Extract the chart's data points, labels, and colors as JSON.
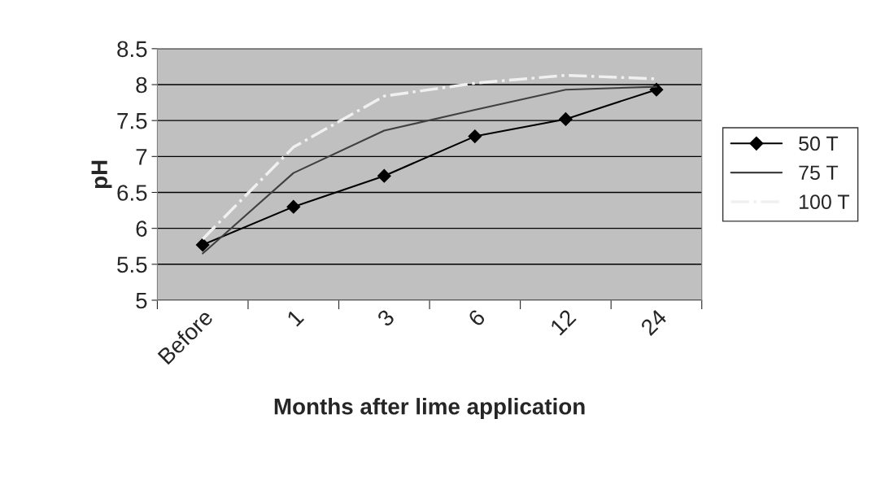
{
  "chart_data": {
    "type": "line",
    "xlabel": "Months after lime application",
    "ylabel": "pH",
    "categories": [
      "Before",
      "1",
      "3",
      "6",
      "12",
      "24"
    ],
    "series": [
      {
        "name": "50 T",
        "color": "#000000",
        "marker": "diamond",
        "line_style": "solid",
        "values": [
          5.77,
          6.3,
          6.73,
          7.28,
          7.52,
          7.93
        ]
      },
      {
        "name": "75 T",
        "color": "#404040",
        "marker": "none",
        "line_style": "solid",
        "values": [
          5.65,
          6.77,
          7.36,
          7.65,
          7.93,
          7.97
        ]
      },
      {
        "name": "100 T",
        "color": "#f0f0f0",
        "marker": "none",
        "line_style": "dashdot",
        "values": [
          5.85,
          7.13,
          7.84,
          8.02,
          8.13,
          8.08
        ]
      }
    ],
    "ylim": [
      5,
      8.5
    ],
    "yticks": [
      5,
      5.5,
      6,
      6.5,
      7,
      7.5,
      8,
      8.5
    ],
    "grid": "y",
    "legend": "right"
  }
}
